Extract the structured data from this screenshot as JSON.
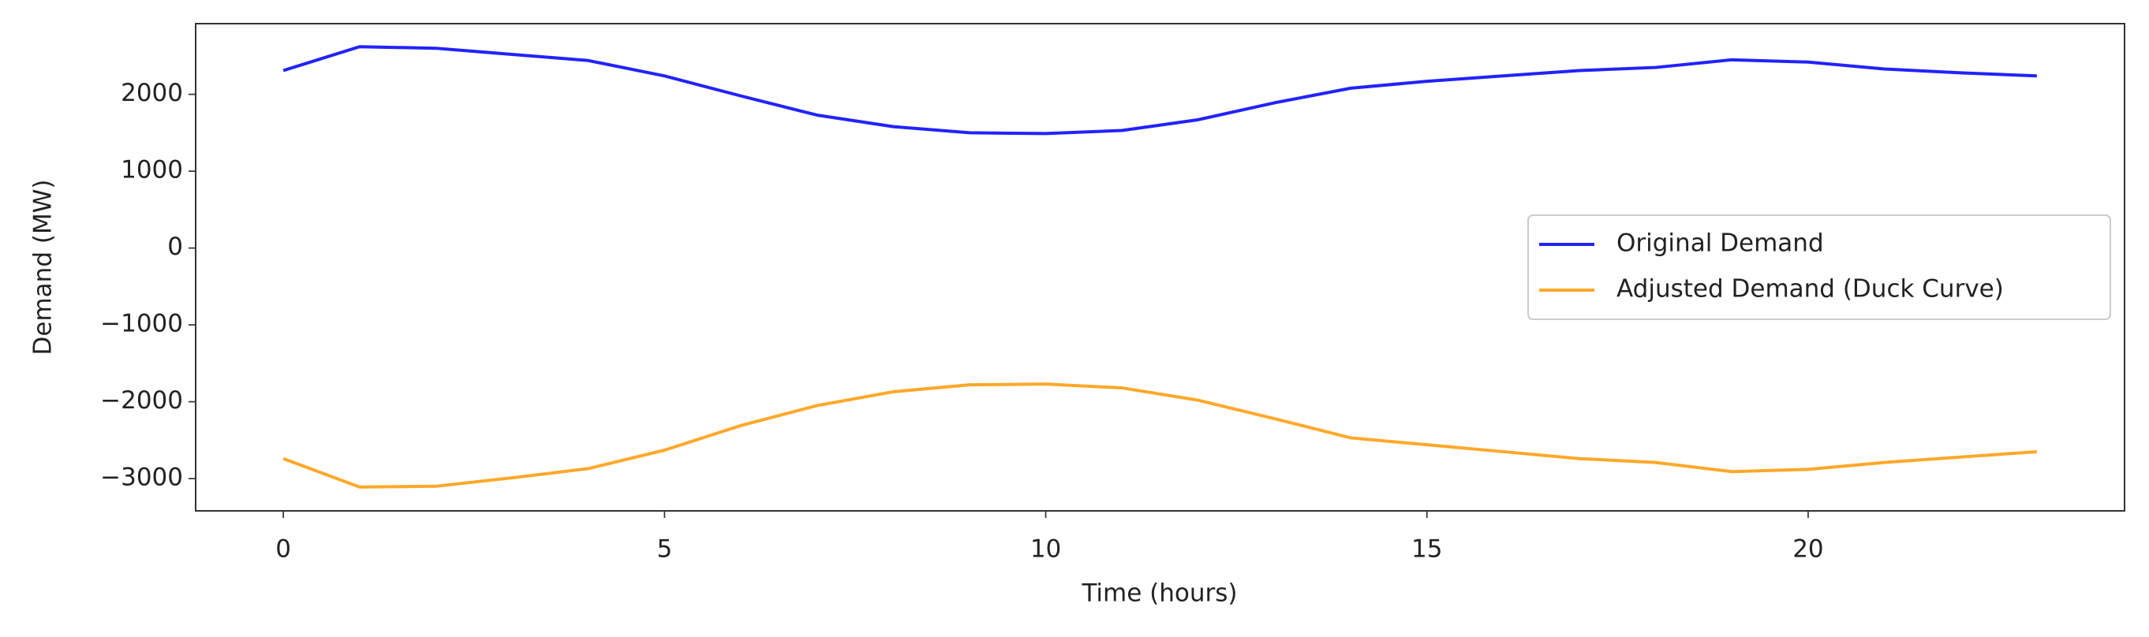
{
  "chart_data": {
    "type": "line",
    "x_label": "Time (hours)",
    "y_label": "Demand (MW)",
    "x": [
      0,
      1,
      2,
      3,
      4,
      5,
      6,
      7,
      8,
      9,
      10,
      11,
      12,
      13,
      14,
      15,
      16,
      17,
      18,
      19,
      20,
      21,
      22,
      23
    ],
    "series": [
      {
        "name": "Original Demand",
        "color": "#2222ff",
        "values": [
          2310,
          2620,
          2600,
          2520,
          2440,
          2240,
          1980,
          1730,
          1580,
          1500,
          1490,
          1530,
          1670,
          1890,
          2080,
          2170,
          2240,
          2310,
          2350,
          2450,
          2420,
          2330,
          2280,
          2240
        ]
      },
      {
        "name": "Adjusted Demand (Duck Curve)",
        "color": "#ffa82a",
        "values": [
          -2740,
          -3110,
          -3100,
          -2990,
          -2870,
          -2630,
          -2310,
          -2050,
          -1870,
          -1780,
          -1770,
          -1820,
          -1980,
          -2220,
          -2470,
          -2560,
          -2650,
          -2740,
          -2790,
          -2910,
          -2880,
          -2790,
          -2720,
          -2650
        ]
      }
    ],
    "xlim": [
      -1.15,
      24.15
    ],
    "xticks": [
      0,
      5,
      10,
      15,
      20
    ],
    "ylim": [
      -3420,
      2920
    ],
    "yticks": [
      {
        "value": -3000,
        "label": "−3000"
      },
      {
        "value": -2000,
        "label": "−2000"
      },
      {
        "value": -1000,
        "label": "−1000"
      },
      0,
      1000,
      2000
    ],
    "legend": "center right"
  }
}
